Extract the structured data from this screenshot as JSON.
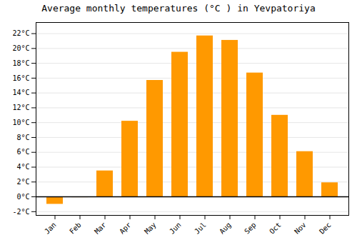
{
  "chart_data": {
    "type": "bar",
    "title": "Average monthly temperatures (°C ) in Yevpatoriya",
    "categories": [
      "Jan",
      "Feb",
      "Mar",
      "Apr",
      "May",
      "Jun",
      "Jul",
      "Aug",
      "Sep",
      "Oct",
      "Nov",
      "Dec"
    ],
    "values": [
      -1.0,
      -0.1,
      3.5,
      10.2,
      15.7,
      19.5,
      21.7,
      21.1,
      16.7,
      11.0,
      6.1,
      1.9
    ],
    "color": "#FF9900",
    "ylim": [
      -2.5,
      23.5
    ],
    "yticks": [
      {
        "value": -2,
        "label": "-2°C"
      },
      {
        "value": 0,
        "label": "0°C"
      },
      {
        "value": 2,
        "label": "2°C"
      },
      {
        "value": 4,
        "label": "4°C"
      },
      {
        "value": 6,
        "label": "6°C"
      },
      {
        "value": 8,
        "label": "8°C"
      },
      {
        "value": 10,
        "label": "10°C"
      },
      {
        "value": 12,
        "label": "12°C"
      },
      {
        "value": 14,
        "label": "14°C"
      },
      {
        "value": 16,
        "label": "16°C"
      },
      {
        "value": 18,
        "label": "18°C"
      },
      {
        "value": 20,
        "label": "20°C"
      },
      {
        "value": 22,
        "label": "22°C"
      }
    ],
    "grid": true
  }
}
